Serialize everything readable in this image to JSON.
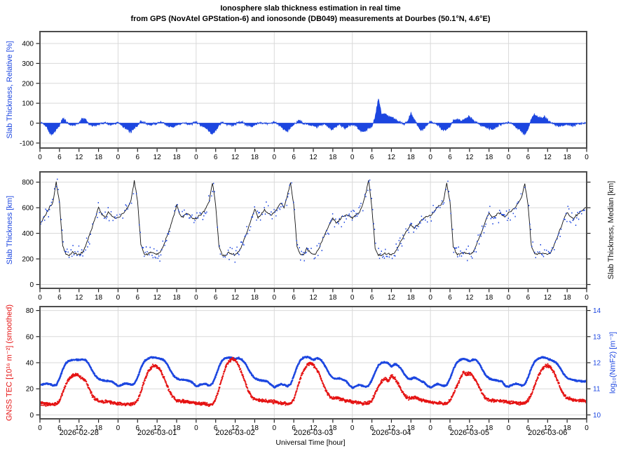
{
  "title": {
    "line1": "Ionosphere slab thickness estimation in real time",
    "line2": "from GPS (NovAtel GPStation-6) and ionosonde (DB049) measurements at Dourbes (50.1°N, 4.6°E)"
  },
  "x_axis": {
    "xlabel": "Universal Time [hour]",
    "total_hours": 168,
    "hour_tick_step": 6,
    "hour_tick_cycle": [
      "0",
      "6",
      "12",
      "18"
    ],
    "day_dates": [
      "2026-02-28",
      "2026-03-01",
      "2026-03-02",
      "2026-03-03",
      "2026-03-04",
      "2026-03-05",
      "2026-03-06"
    ]
  },
  "colors": {
    "blue": "#1c46e0",
    "red": "#e51212",
    "median": "#111111",
    "frame": "#4d4d4d",
    "grid": "#d9d9d9"
  },
  "chart_data": [
    {
      "id": "relative_slab_thickness",
      "type": "area",
      "ylabel_left": "Slab Thickness, Relative [%]",
      "ylim": [
        -125,
        460
      ],
      "yticks": [
        -100,
        0,
        100,
        200,
        300,
        400
      ],
      "grid": true,
      "series": [
        {
          "name": "relative slab thickness",
          "color": "#1c46e0",
          "x_step_hours": 1,
          "noise_amplitude_pct": 9,
          "values": [
            8,
            -5,
            -15,
            -50,
            -55,
            -30,
            -12,
            22,
            10,
            -5,
            -10,
            -6,
            2,
            22,
            18,
            -6,
            -12,
            -10,
            -6,
            -2,
            4,
            -4,
            -8,
            -3,
            5,
            -8,
            -20,
            -35,
            -45,
            -25,
            -10,
            8,
            4,
            -6,
            -8,
            -4,
            0,
            6,
            4,
            -8,
            -15,
            -20,
            -10,
            -4,
            2,
            -2,
            -6,
            -2,
            4,
            -6,
            -12,
            -25,
            -40,
            -55,
            -35,
            -8,
            6,
            -4,
            -8,
            -10,
            -6,
            4,
            8,
            -4,
            -10,
            -14,
            -8,
            -2,
            4,
            0,
            -4,
            -2,
            6,
            -4,
            -15,
            -30,
            -40,
            -20,
            -8,
            6,
            10,
            -2,
            -6,
            -8,
            -12,
            -18,
            -10,
            -4,
            -8,
            -25,
            -30,
            -15,
            -5,
            -18,
            -25,
            -12,
            -5,
            -12,
            -30,
            -42,
            -40,
            -25,
            -15,
            30,
            125,
            45,
            50,
            30,
            35,
            20,
            8,
            0,
            -5,
            10,
            48,
            20,
            -8,
            -35,
            -28,
            -10,
            10,
            0,
            -8,
            -20,
            -35,
            -30,
            -15,
            10,
            20,
            15,
            10,
            25,
            35,
            15,
            5,
            -5,
            -12,
            -18,
            -25,
            -30,
            -20,
            -10,
            -5,
            0,
            5,
            -5,
            -15,
            -30,
            -40,
            -55,
            -30,
            20,
            45,
            30,
            25,
            30,
            15,
            5,
            -5,
            -10,
            -15,
            -10,
            -5,
            -8,
            -12,
            -8,
            -4,
            0,
            5
          ]
        }
      ]
    },
    {
      "id": "slab_thickness",
      "type": "line+scatter",
      "ylabel_left": "Slab Thickness [km]",
      "ylabel_right": "Slab Thickness, Median [km]",
      "ylim": [
        -30,
        880
      ],
      "yticks": [
        0,
        200,
        400,
        600,
        800
      ],
      "grid": true,
      "series": [
        {
          "name": "slab thickness median",
          "color": "#111111",
          "x_step_hours": 1,
          "values": [
            480,
            510,
            555,
            605,
            640,
            800,
            640,
            300,
            235,
            230,
            250,
            240,
            232,
            250,
            300,
            370,
            440,
            520,
            605,
            545,
            520,
            565,
            545,
            515,
            520,
            545,
            565,
            600,
            660,
            810,
            650,
            310,
            240,
            235,
            255,
            245,
            235,
            255,
            305,
            375,
            445,
            525,
            620,
            550,
            525,
            560,
            540,
            515,
            510,
            540,
            560,
            595,
            650,
            800,
            620,
            300,
            232,
            228,
            248,
            238,
            230,
            252,
            300,
            370,
            435,
            515,
            590,
            525,
            545,
            580,
            560,
            540,
            560,
            600,
            640,
            600,
            690,
            800,
            620,
            290,
            238,
            232,
            280,
            250,
            235,
            248,
            295,
            360,
            420,
            470,
            520,
            480,
            500,
            530,
            545,
            535,
            520,
            545,
            560,
            610,
            700,
            820,
            600,
            280,
            230,
            228,
            245,
            238,
            232,
            248,
            290,
            340,
            390,
            430,
            470,
            440,
            460,
            500,
            520,
            530,
            540,
            560,
            600,
            620,
            650,
            790,
            650,
            300,
            240,
            234,
            252,
            242,
            234,
            250,
            300,
            365,
            430,
            500,
            560,
            520,
            535,
            560,
            545,
            530,
            560,
            580,
            600,
            640,
            680,
            790,
            620,
            300,
            240,
            235,
            250,
            242,
            236,
            252,
            305,
            370,
            440,
            510,
            565,
            530,
            510,
            545,
            565,
            585,
            600
          ]
        },
        {
          "name": "slab thickness measurements (ionosonde/GPS dots)",
          "color": "#1c46e0",
          "derived_from": "median series plus scatter",
          "scatter_amplitude_km": 75,
          "sample_step_hours": 0.3
        }
      ]
    },
    {
      "id": "tec_and_nmf2",
      "type": "line",
      "ylabel_left": "GNSS TEC [10¹⁶ m⁻²] (smoothed)",
      "ylabel_right": "log₁₀(NmF2) [m⁻³]",
      "ylim_left": [
        -3,
        83
      ],
      "yticks_left": [
        0,
        20,
        40,
        60,
        80
      ],
      "ylim_right": [
        9.85,
        14.15
      ],
      "yticks_right": [
        10,
        11,
        12,
        13,
        14
      ],
      "grid": true,
      "series": [
        {
          "name": "GNSS TEC smoothed",
          "color": "#e51212",
          "axis": "left",
          "x_step_hours": 1,
          "noise_amplitude": 1.5,
          "values": [
            9,
            8.5,
            8,
            8.2,
            8,
            8.5,
            11,
            17,
            24,
            28,
            30,
            31,
            30,
            28,
            26,
            21,
            15,
            12,
            10.5,
            10,
            10.2,
            10,
            9.5,
            9.2,
            9,
            8.5,
            8.2,
            8,
            8.3,
            8.5,
            11,
            18,
            26,
            32,
            36,
            38,
            37,
            34,
            29,
            23,
            17,
            13,
            11,
            10.5,
            10.5,
            10,
            9.8,
            9.5,
            9.2,
            8.8,
            8.4,
            8.2,
            8,
            8.5,
            12,
            20,
            29,
            36,
            41,
            43,
            42,
            38,
            32,
            25,
            18,
            14,
            12,
            11.5,
            11,
            10.8,
            10.5,
            10.2,
            10,
            9.5,
            9,
            8.8,
            8.5,
            9,
            12,
            20,
            28,
            34,
            38,
            40,
            38,
            35,
            30,
            24,
            18,
            14,
            12.5,
            13,
            12.5,
            11.5,
            11,
            10.5,
            10,
            9.8,
            9.5,
            9,
            8.8,
            9,
            11,
            17,
            22,
            26,
            28,
            26,
            30,
            28,
            24,
            19,
            15,
            13,
            12.5,
            13.5,
            12.5,
            11.5,
            11,
            10.5,
            10,
            9.5,
            9,
            8.8,
            8.5,
            9,
            11,
            16,
            22,
            27,
            33,
            31,
            32,
            30,
            26,
            21,
            16,
            13,
            11.5,
            11,
            11,
            10.8,
            10.5,
            10.2,
            10,
            9.5,
            9.2,
            9,
            8.8,
            9,
            11,
            16,
            23,
            29,
            34,
            37,
            38,
            36,
            32,
            26,
            20,
            15,
            13,
            12,
            11.5,
            11,
            10.8,
            10.5,
            10.5
          ]
        },
        {
          "name": "log10(NmF2)",
          "color": "#1c46e0",
          "axis": "right",
          "x_step_hours": 1,
          "noise_amplitude": 0.03,
          "values": [
            11.15,
            11.17,
            11.2,
            11.18,
            11.12,
            11.15,
            11.4,
            11.75,
            12.0,
            12.08,
            12.1,
            12.12,
            12.1,
            12.12,
            12.1,
            11.95,
            11.7,
            11.5,
            11.38,
            11.33,
            11.3,
            11.3,
            11.28,
            11.2,
            11.1,
            11.15,
            11.2,
            11.2,
            11.15,
            11.2,
            11.45,
            11.8,
            12.05,
            12.15,
            12.2,
            12.2,
            12.18,
            12.15,
            12.1,
            11.95,
            11.72,
            11.5,
            11.4,
            11.35,
            11.35,
            11.33,
            11.3,
            11.22,
            11.08,
            11.15,
            11.18,
            11.18,
            11.12,
            11.2,
            11.5,
            11.85,
            12.1,
            12.18,
            12.2,
            12.18,
            12.15,
            12.18,
            12.12,
            11.98,
            11.75,
            11.55,
            11.4,
            11.35,
            11.32,
            11.3,
            11.28,
            11.15,
            11.05,
            11.12,
            11.18,
            11.15,
            11.1,
            11.18,
            11.5,
            11.85,
            12.1,
            12.2,
            12.22,
            12.18,
            12.1,
            12.18,
            12.15,
            12.0,
            11.78,
            11.55,
            11.42,
            11.38,
            11.4,
            11.35,
            11.3,
            11.15,
            11.03,
            11.1,
            11.15,
            11.12,
            11.08,
            11.12,
            11.35,
            11.65,
            11.9,
            12.0,
            12.02,
            11.98,
            11.85,
            11.95,
            11.9,
            11.75,
            11.55,
            11.4,
            11.38,
            11.43,
            11.38,
            11.3,
            11.25,
            11.12,
            11.05,
            11.12,
            11.18,
            11.16,
            11.1,
            11.15,
            11.4,
            11.75,
            12.0,
            12.1,
            12.15,
            12.12,
            12.05,
            12.12,
            12.1,
            11.95,
            11.72,
            11.5,
            11.4,
            11.35,
            11.33,
            11.3,
            11.28,
            11.1,
            11.08,
            11.15,
            11.2,
            11.18,
            11.12,
            11.18,
            11.45,
            11.8,
            12.05,
            12.15,
            12.2,
            12.2,
            12.15,
            12.1,
            12.05,
            11.95,
            11.75,
            11.55,
            11.42,
            11.36,
            11.33,
            11.3,
            11.3,
            11.28,
            11.3
          ]
        }
      ]
    }
  ]
}
